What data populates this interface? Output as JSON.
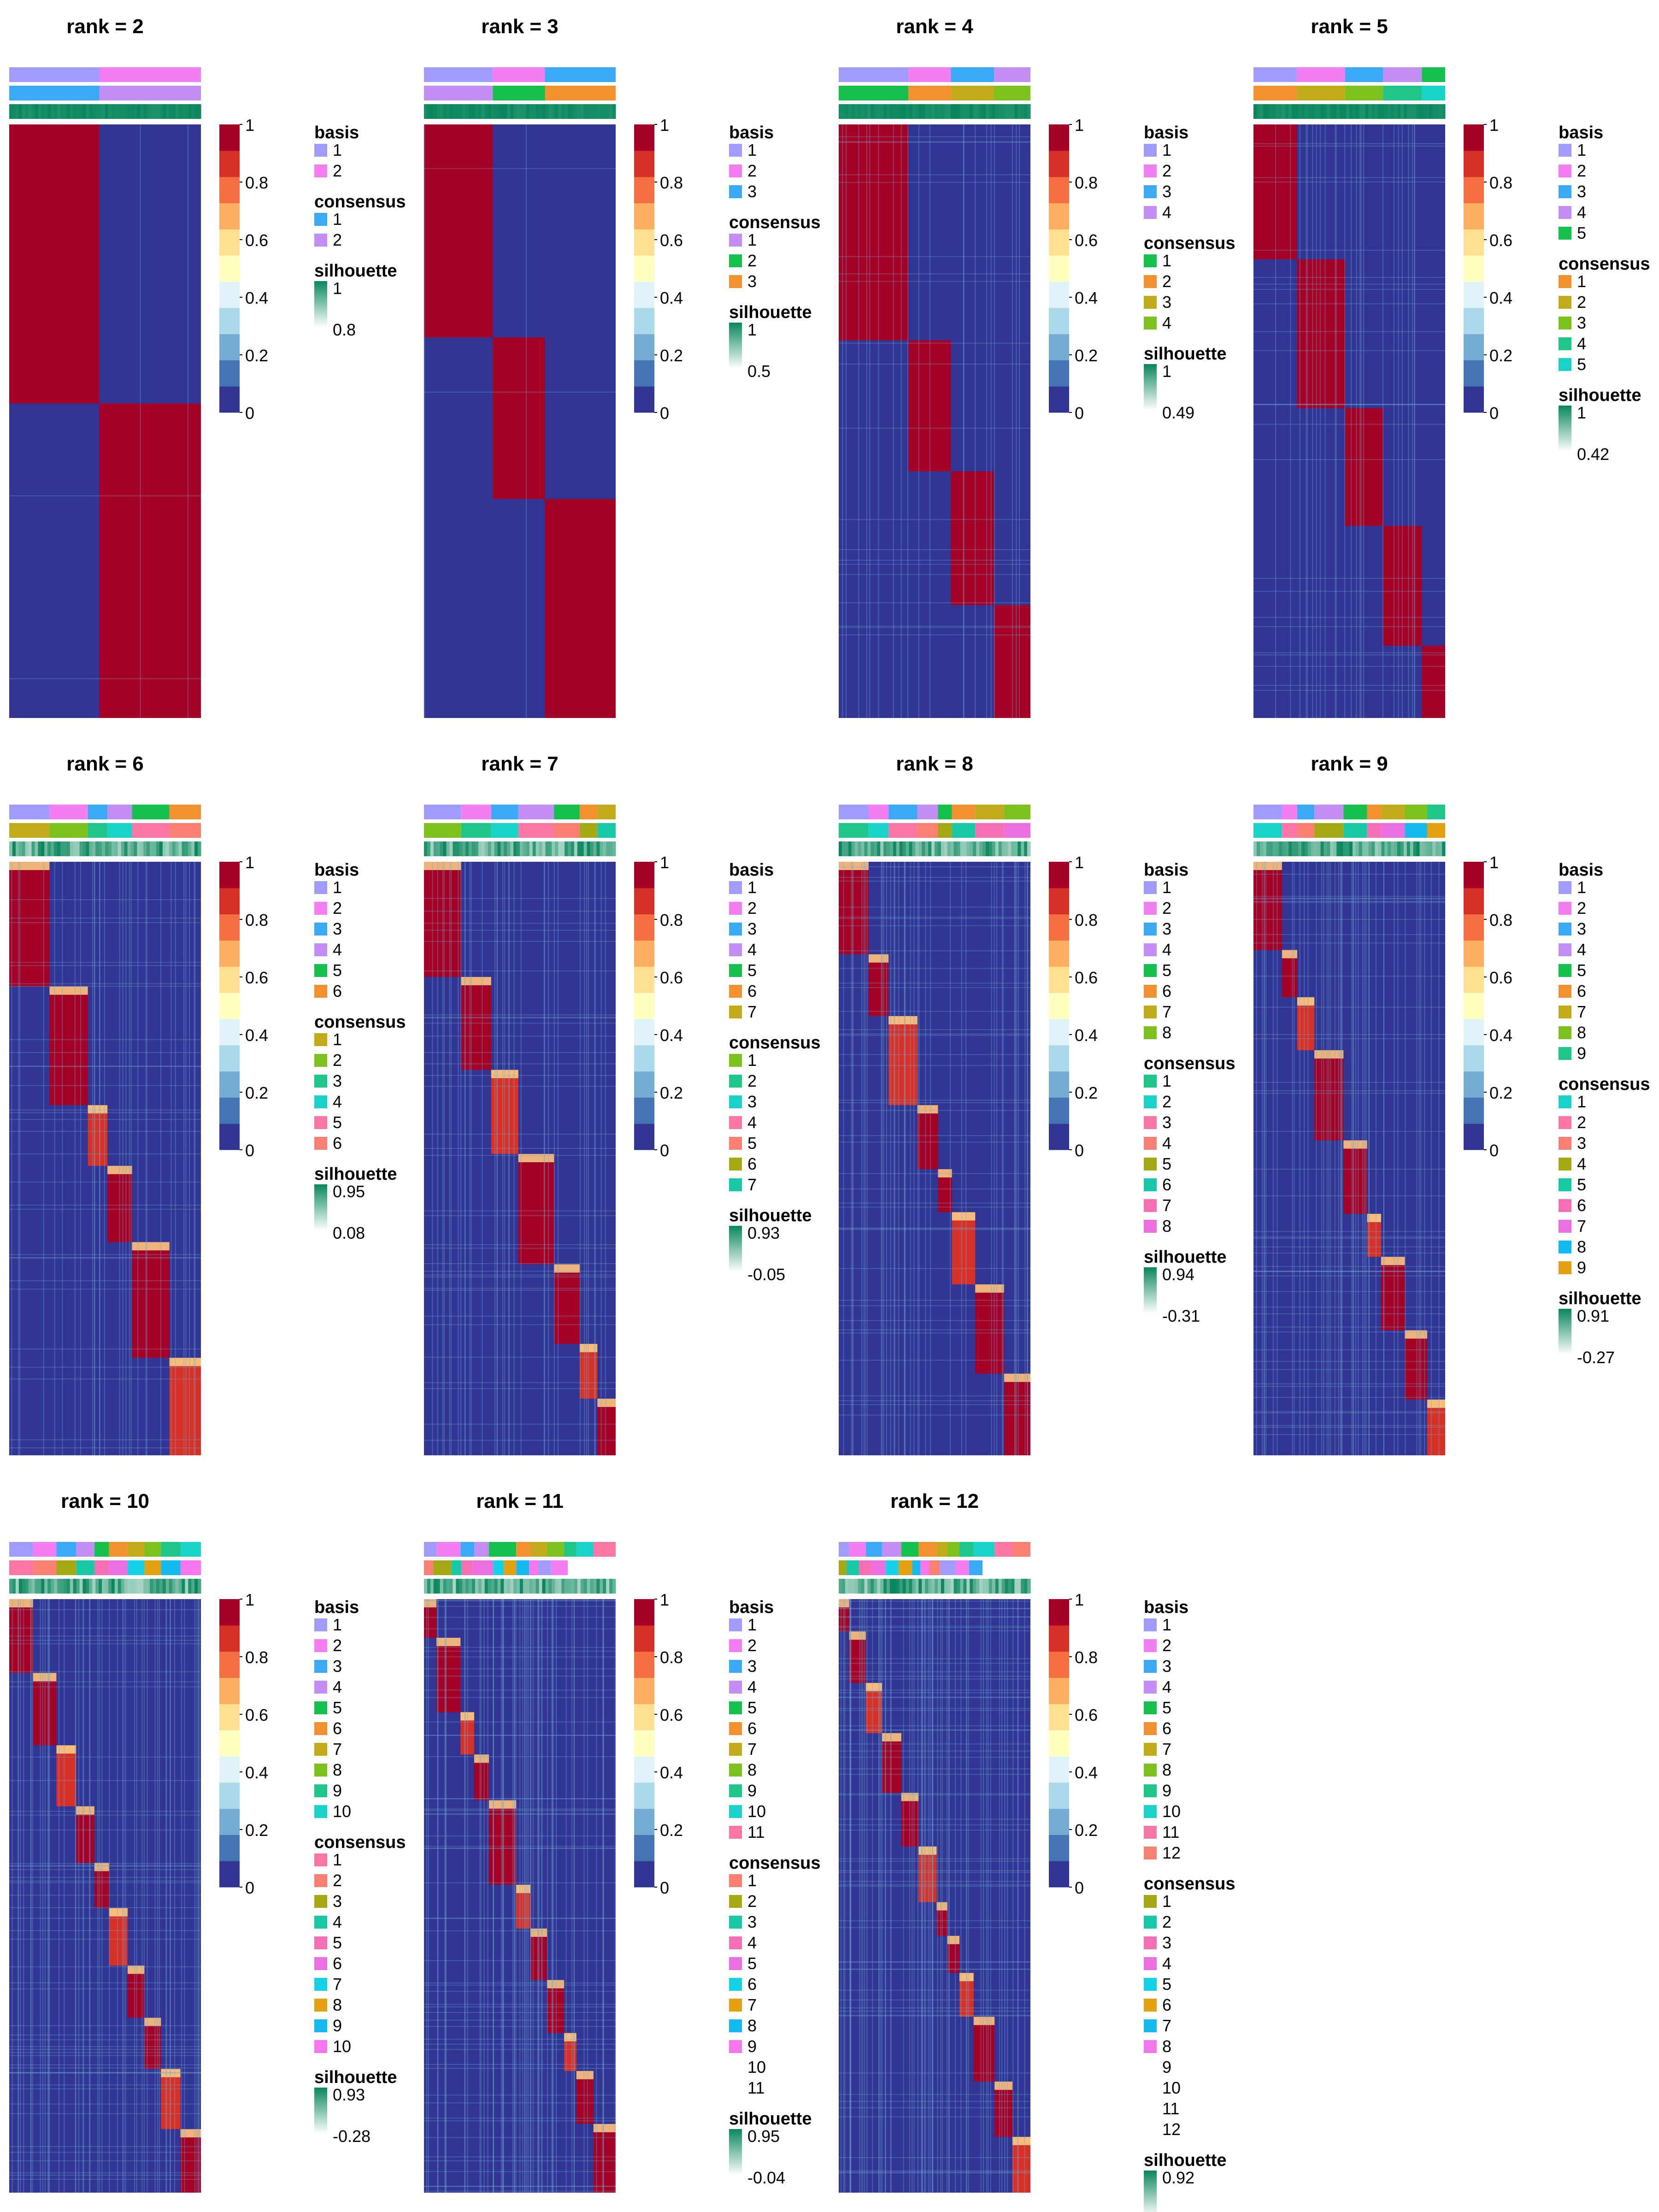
{
  "figure": {
    "colorbar_ticks": [
      "1",
      "0.8",
      "0.6",
      "0.4",
      "0.2",
      "0"
    ],
    "colorbar_colors": [
      "#313695",
      "#4575b4",
      "#74add1",
      "#abd9e9",
      "#e0f3f8",
      "#ffffbf",
      "#fee090",
      "#fdae61",
      "#f46d43",
      "#d73027",
      "#a50026"
    ],
    "basis_title": "basis",
    "consensus_title": "consensus",
    "silhouette_title": "silhouette",
    "silhouette_colors": [
      "#ffffff",
      "#08865e"
    ]
  },
  "chart_data": [
    {
      "type": "heatmap",
      "title": "rank =  2",
      "rank": 2,
      "basis": [
        {
          "label": "1",
          "color": "#a29bfe"
        },
        {
          "label": "2",
          "color": "#f27ef0"
        }
      ],
      "consensus": [
        {
          "label": "1",
          "color": "#3aa9f7"
        },
        {
          "label": "2",
          "color": "#c38ef3"
        }
      ],
      "silhouette": [
        "1",
        "0.8"
      ]
    },
    {
      "type": "heatmap",
      "title": "rank =  3",
      "rank": 3,
      "basis": [
        {
          "label": "1",
          "color": "#a29bfe"
        },
        {
          "label": "2",
          "color": "#f27ef0"
        },
        {
          "label": "3",
          "color": "#3aa9f7"
        }
      ],
      "consensus": [
        {
          "label": "1",
          "color": "#c38ef3"
        },
        {
          "label": "2",
          "color": "#15c14d"
        },
        {
          "label": "3",
          "color": "#f5902e"
        }
      ],
      "silhouette": [
        "1",
        "0.5"
      ]
    },
    {
      "type": "heatmap",
      "title": "rank =  4",
      "rank": 4,
      "basis": [
        {
          "label": "1",
          "color": "#a29bfe"
        },
        {
          "label": "2",
          "color": "#f27ef0"
        },
        {
          "label": "3",
          "color": "#3aa9f7"
        },
        {
          "label": "4",
          "color": "#c38ef3"
        }
      ],
      "consensus": [
        {
          "label": "1",
          "color": "#15c14d"
        },
        {
          "label": "2",
          "color": "#f5902e"
        },
        {
          "label": "3",
          "color": "#c2ab1b"
        },
        {
          "label": "4",
          "color": "#7cc11e"
        }
      ],
      "silhouette": [
        "1",
        "0.49"
      ]
    },
    {
      "type": "heatmap",
      "title": "rank =  5",
      "rank": 5,
      "basis": [
        {
          "label": "1",
          "color": "#a29bfe"
        },
        {
          "label": "2",
          "color": "#f27ef0"
        },
        {
          "label": "3",
          "color": "#3aa9f7"
        },
        {
          "label": "4",
          "color": "#c38ef3"
        },
        {
          "label": "5",
          "color": "#15c14d"
        }
      ],
      "consensus": [
        {
          "label": "1",
          "color": "#f5902e"
        },
        {
          "label": "2",
          "color": "#c2ab1b"
        },
        {
          "label": "3",
          "color": "#7cc11e"
        },
        {
          "label": "4",
          "color": "#1fc68a"
        },
        {
          "label": "5",
          "color": "#19d2c9"
        }
      ],
      "silhouette": [
        "1",
        "0.42"
      ]
    },
    {
      "type": "heatmap",
      "title": "rank =  6",
      "rank": 6,
      "basis": [
        {
          "label": "1",
          "color": "#a29bfe"
        },
        {
          "label": "2",
          "color": "#f27ef0"
        },
        {
          "label": "3",
          "color": "#3aa9f7"
        },
        {
          "label": "4",
          "color": "#c38ef3"
        },
        {
          "label": "5",
          "color": "#15c14d"
        },
        {
          "label": "6",
          "color": "#f5902e"
        }
      ],
      "consensus": [
        {
          "label": "1",
          "color": "#c2ab1b"
        },
        {
          "label": "2",
          "color": "#7cc11e"
        },
        {
          "label": "3",
          "color": "#1fc68a"
        },
        {
          "label": "4",
          "color": "#19d2c9"
        },
        {
          "label": "5",
          "color": "#fb76a5"
        },
        {
          "label": "6",
          "color": "#fb8072"
        }
      ],
      "silhouette": [
        "0.95",
        "0.08"
      ]
    },
    {
      "type": "heatmap",
      "title": "rank =  7",
      "rank": 7,
      "basis": [
        {
          "label": "1",
          "color": "#a29bfe"
        },
        {
          "label": "2",
          "color": "#f27ef0"
        },
        {
          "label": "3",
          "color": "#3aa9f7"
        },
        {
          "label": "4",
          "color": "#c38ef3"
        },
        {
          "label": "5",
          "color": "#15c14d"
        },
        {
          "label": "6",
          "color": "#f5902e"
        },
        {
          "label": "7",
          "color": "#c2ab1b"
        }
      ],
      "consensus": [
        {
          "label": "1",
          "color": "#7cc11e"
        },
        {
          "label": "2",
          "color": "#1fc68a"
        },
        {
          "label": "3",
          "color": "#19d2c9"
        },
        {
          "label": "4",
          "color": "#fb76a5"
        },
        {
          "label": "5",
          "color": "#fb8072"
        },
        {
          "label": "6",
          "color": "#a3a813"
        },
        {
          "label": "7",
          "color": "#17c9a7"
        }
      ],
      "silhouette": [
        "0.93",
        "-0.05"
      ]
    },
    {
      "type": "heatmap",
      "title": "rank =  8",
      "rank": 8,
      "basis": [
        {
          "label": "1",
          "color": "#a29bfe"
        },
        {
          "label": "2",
          "color": "#f27ef0"
        },
        {
          "label": "3",
          "color": "#3aa9f7"
        },
        {
          "label": "4",
          "color": "#c38ef3"
        },
        {
          "label": "5",
          "color": "#15c14d"
        },
        {
          "label": "6",
          "color": "#f5902e"
        },
        {
          "label": "7",
          "color": "#c2ab1b"
        },
        {
          "label": "8",
          "color": "#7cc11e"
        }
      ],
      "consensus": [
        {
          "label": "1",
          "color": "#1fc68a"
        },
        {
          "label": "2",
          "color": "#19d2c9"
        },
        {
          "label": "3",
          "color": "#fb76a5"
        },
        {
          "label": "4",
          "color": "#fb8072"
        },
        {
          "label": "5",
          "color": "#a3a813"
        },
        {
          "label": "6",
          "color": "#17c9a7"
        },
        {
          "label": "7",
          "color": "#f56fb5"
        },
        {
          "label": "8",
          "color": "#ec6fe0"
        }
      ],
      "silhouette": [
        "0.94",
        "-0.31"
      ]
    },
    {
      "type": "heatmap",
      "title": "rank =  9",
      "rank": 9,
      "basis": [
        {
          "label": "1",
          "color": "#a29bfe"
        },
        {
          "label": "2",
          "color": "#f27ef0"
        },
        {
          "label": "3",
          "color": "#3aa9f7"
        },
        {
          "label": "4",
          "color": "#c38ef3"
        },
        {
          "label": "5",
          "color": "#15c14d"
        },
        {
          "label": "6",
          "color": "#f5902e"
        },
        {
          "label": "7",
          "color": "#c2ab1b"
        },
        {
          "label": "8",
          "color": "#7cc11e"
        },
        {
          "label": "9",
          "color": "#1fc68a"
        }
      ],
      "consensus": [
        {
          "label": "1",
          "color": "#19d2c9"
        },
        {
          "label": "2",
          "color": "#fb76a5"
        },
        {
          "label": "3",
          "color": "#fb8072"
        },
        {
          "label": "4",
          "color": "#a3a813"
        },
        {
          "label": "5",
          "color": "#17c9a7"
        },
        {
          "label": "6",
          "color": "#f56fb5"
        },
        {
          "label": "7",
          "color": "#ec6fe0"
        },
        {
          "label": "8",
          "color": "#14b9f0"
        },
        {
          "label": "9",
          "color": "#e4a10f"
        }
      ],
      "silhouette": [
        "0.91",
        "-0.27"
      ]
    },
    {
      "type": "heatmap",
      "title": "rank =  10",
      "rank": 10,
      "basis": [
        {
          "label": "1",
          "color": "#a29bfe"
        },
        {
          "label": "2",
          "color": "#f27ef0"
        },
        {
          "label": "3",
          "color": "#3aa9f7"
        },
        {
          "label": "4",
          "color": "#c38ef3"
        },
        {
          "label": "5",
          "color": "#15c14d"
        },
        {
          "label": "6",
          "color": "#f5902e"
        },
        {
          "label": "7",
          "color": "#c2ab1b"
        },
        {
          "label": "8",
          "color": "#7cc11e"
        },
        {
          "label": "9",
          "color": "#1fc68a"
        },
        {
          "label": "10",
          "color": "#19d2c9"
        }
      ],
      "consensus": [
        {
          "label": "1",
          "color": "#fb76a5"
        },
        {
          "label": "2",
          "color": "#fb8072"
        },
        {
          "label": "3",
          "color": "#a3a813"
        },
        {
          "label": "4",
          "color": "#17c9a7"
        },
        {
          "label": "5",
          "color": "#f56fb5"
        },
        {
          "label": "6",
          "color": "#ec6fe0"
        },
        {
          "label": "7",
          "color": "#14d2e8"
        },
        {
          "label": "8",
          "color": "#e4a10f"
        },
        {
          "label": "9",
          "color": "#14b9f0"
        },
        {
          "label": "10",
          "color": "#f577eb"
        }
      ],
      "silhouette": [
        "0.93",
        "-0.28"
      ]
    },
    {
      "type": "heatmap",
      "title": "rank =  11",
      "rank": 11,
      "basis": [
        {
          "label": "1",
          "color": "#a29bfe"
        },
        {
          "label": "2",
          "color": "#f27ef0"
        },
        {
          "label": "3",
          "color": "#3aa9f7"
        },
        {
          "label": "4",
          "color": "#c38ef3"
        },
        {
          "label": "5",
          "color": "#15c14d"
        },
        {
          "label": "6",
          "color": "#f5902e"
        },
        {
          "label": "7",
          "color": "#c2ab1b"
        },
        {
          "label": "8",
          "color": "#7cc11e"
        },
        {
          "label": "9",
          "color": "#1fc68a"
        },
        {
          "label": "10",
          "color": "#19d2c9"
        },
        {
          "label": "11",
          "color": "#fb76a5"
        }
      ],
      "consensus": [
        {
          "label": "1",
          "color": "#fb8072"
        },
        {
          "label": "2",
          "color": "#a3a813"
        },
        {
          "label": "3",
          "color": "#17c9a7"
        },
        {
          "label": "4",
          "color": "#f56fb5"
        },
        {
          "label": "5",
          "color": "#ec6fe0"
        },
        {
          "label": "6",
          "color": "#14d2e8"
        },
        {
          "label": "7",
          "color": "#e4a10f"
        },
        {
          "label": "8",
          "color": "#14b9f0"
        },
        {
          "label": "9",
          "color": "#f577eb"
        },
        {
          "label": "10",
          "color": ""
        },
        {
          "label": "11",
          "color": ""
        }
      ],
      "silhouette": [
        "0.95",
        "-0.04"
      ]
    },
    {
      "type": "heatmap",
      "title": "rank =  12",
      "rank": 12,
      "basis": [
        {
          "label": "1",
          "color": "#a29bfe"
        },
        {
          "label": "2",
          "color": "#f27ef0"
        },
        {
          "label": "3",
          "color": "#3aa9f7"
        },
        {
          "label": "4",
          "color": "#c38ef3"
        },
        {
          "label": "5",
          "color": "#15c14d"
        },
        {
          "label": "6",
          "color": "#f5902e"
        },
        {
          "label": "7",
          "color": "#c2ab1b"
        },
        {
          "label": "8",
          "color": "#7cc11e"
        },
        {
          "label": "9",
          "color": "#1fc68a"
        },
        {
          "label": "10",
          "color": "#19d2c9"
        },
        {
          "label": "11",
          "color": "#fb76a5"
        },
        {
          "label": "12",
          "color": "#fb8072"
        }
      ],
      "consensus": [
        {
          "label": "1",
          "color": "#a3a813"
        },
        {
          "label": "2",
          "color": "#17c9a7"
        },
        {
          "label": "3",
          "color": "#f56fb5"
        },
        {
          "label": "4",
          "color": "#ec6fe0"
        },
        {
          "label": "5",
          "color": "#14d2e8"
        },
        {
          "label": "6",
          "color": "#e4a10f"
        },
        {
          "label": "7",
          "color": "#14b9f0"
        },
        {
          "label": "8",
          "color": "#f577eb"
        },
        {
          "label": "9",
          "color": ""
        },
        {
          "label": "10",
          "color": ""
        },
        {
          "label": "11",
          "color": ""
        },
        {
          "label": "12",
          "color": ""
        }
      ],
      "silhouette": [
        "0.92",
        ""
      ]
    }
  ]
}
